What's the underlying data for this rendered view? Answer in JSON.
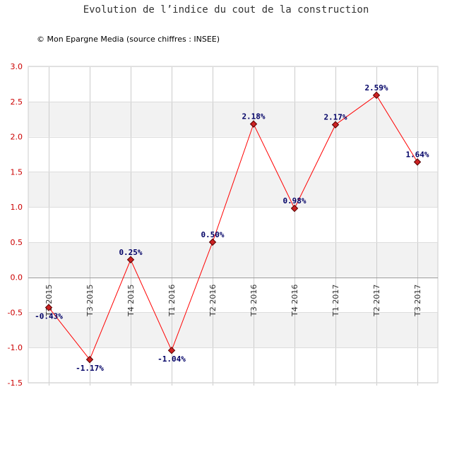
{
  "chart_data": {
    "type": "line",
    "title": "Evolution de l’indice du cout de la construction",
    "subtitle": "© Mon Epargne Media (source chiffres : INSEE)",
    "categories": [
      "T2 2015",
      "T3 2015",
      "T4 2015",
      "T1 2016",
      "T2 2016",
      "T3 2016",
      "T4 2016",
      "T1 2017",
      "T2 2017",
      "T3 2017"
    ],
    "values": [
      -0.43,
      -1.17,
      0.25,
      -1.04,
      0.5,
      2.18,
      0.98,
      2.17,
      2.59,
      1.64
    ],
    "data_labels": [
      "-0.43%",
      "-1.17%",
      "0.25%",
      "-1.04%",
      "0.50%",
      "2.18%",
      "0.98%",
      "2.17%",
      "2.59%",
      "1.64%"
    ],
    "yticks": [
      "3.0",
      "2.5",
      "2.0",
      "1.5",
      "1.0",
      "0.5",
      "0.0",
      "-0.5",
      "-1.0",
      "-1.5"
    ],
    "ylim": [
      -1.5,
      3.0
    ],
    "xlabel": "",
    "ylabel": "",
    "grid": true,
    "colors": {
      "line": "#ff0000",
      "marker": "#cc2222",
      "band": "#f2f2f2",
      "ytick": "#cc0000",
      "label": "#000066"
    }
  }
}
